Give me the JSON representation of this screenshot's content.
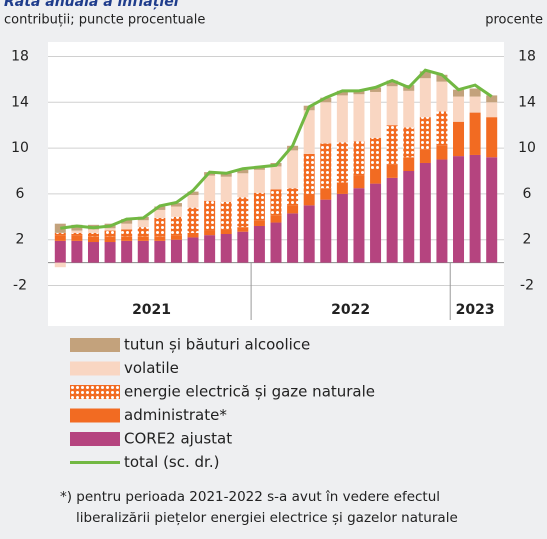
{
  "chart_data": {
    "type": "bar",
    "stacked": true,
    "title": "Rata anuală a inflației",
    "subtitle": "contribuții; puncte procentuale",
    "y2_label": "procente",
    "categories": [
      null,
      null,
      null,
      null,
      null,
      null,
      null,
      null,
      null,
      null,
      null,
      null,
      null,
      null,
      null,
      null,
      null,
      null,
      null,
      null,
      null,
      null,
      null,
      null,
      null,
      null,
      null
    ],
    "year_groups": [
      {
        "label": "2021",
        "months": 12
      },
      {
        "label": "2022",
        "months": 12
      },
      {
        "label": "2023",
        "months": 3
      }
    ],
    "ylim": [
      -3,
      19
    ],
    "yticks": [
      -2,
      2,
      6,
      10,
      14,
      18
    ],
    "y2lim": [
      -3,
      19
    ],
    "y2ticks": [
      -2,
      2,
      6,
      10,
      14,
      18
    ],
    "grid": true,
    "series": [
      {
        "name": "CORE2 ajustat",
        "color": "#b5447f",
        "values": [
          1.9,
          1.9,
          1.8,
          1.8,
          1.9,
          1.9,
          1.9,
          2.0,
          2.2,
          2.4,
          2.5,
          2.7,
          3.2,
          3.5,
          4.3,
          5.0,
          5.5,
          6.0,
          6.5,
          6.9,
          7.4,
          8.0,
          8.7,
          9.0,
          9.3,
          9.4,
          9.2
        ]
      },
      {
        "name": "administrate*",
        "color": "#f26b22",
        "values": [
          0.5,
          0.5,
          0.5,
          0.5,
          0.4,
          0.4,
          0.4,
          0.4,
          0.4,
          0.4,
          0.4,
          0.4,
          0.5,
          0.6,
          0.7,
          1.0,
          1.0,
          1.0,
          1.1,
          1.1,
          1.2,
          1.2,
          1.2,
          1.2,
          3.0,
          3.7,
          3.5
        ]
      },
      {
        "name": "energie electrică și gaze naturale",
        "color": "#f26b22",
        "pattern": "dots",
        "values": [
          0.2,
          0.2,
          0.3,
          0.5,
          0.6,
          0.8,
          1.6,
          1.6,
          2.2,
          2.6,
          2.4,
          2.6,
          2.4,
          2.3,
          1.5,
          3.5,
          3.9,
          3.5,
          3.0,
          2.9,
          3.4,
          2.6,
          2.8,
          3.0,
          0,
          0,
          0
        ]
      },
      {
        "name": "volatile",
        "color": "#f9d6c2",
        "values": [
          -0.4,
          0.2,
          0.3,
          0.2,
          0.5,
          0.6,
          0.7,
          0.9,
          1.1,
          2.2,
          2.2,
          2.1,
          2.0,
          2.0,
          3.3,
          3.8,
          3.6,
          4.1,
          4.1,
          4.0,
          3.4,
          3.2,
          3.4,
          2.6,
          2.2,
          1.4,
          1.3
        ]
      },
      {
        "name": "tutun și băuturi alcoolice",
        "color": "#c3a27c",
        "values": [
          0.8,
          0.5,
          0.4,
          0.4,
          0.4,
          0.3,
          0.3,
          0.3,
          0.3,
          0.3,
          0.3,
          0.3,
          0.3,
          0.3,
          0.4,
          0.4,
          0.4,
          0.4,
          0.3,
          0.4,
          0.5,
          0.5,
          0.6,
          0.6,
          0.6,
          0.7,
          0.6
        ]
      },
      {
        "name": "total (sc. dr.)",
        "color": "#72b843",
        "type": "line",
        "axis": "y2",
        "values": [
          3.0,
          3.2,
          3.05,
          3.2,
          3.8,
          3.9,
          4.95,
          5.25,
          6.3,
          7.9,
          7.8,
          8.2,
          8.35,
          8.5,
          10.2,
          13.6,
          14.4,
          15.0,
          15.0,
          15.3,
          15.9,
          15.3,
          16.8,
          16.4,
          15.1,
          15.5,
          14.5
        ]
      }
    ],
    "legend_order": [
      4,
      3,
      2,
      1,
      0,
      5
    ],
    "note": [
      "*) pentru perioada 2021-2022 s-a avut în vedere efectul",
      "liberalizării piețelor energiei electrice și gazelor naturale"
    ]
  }
}
